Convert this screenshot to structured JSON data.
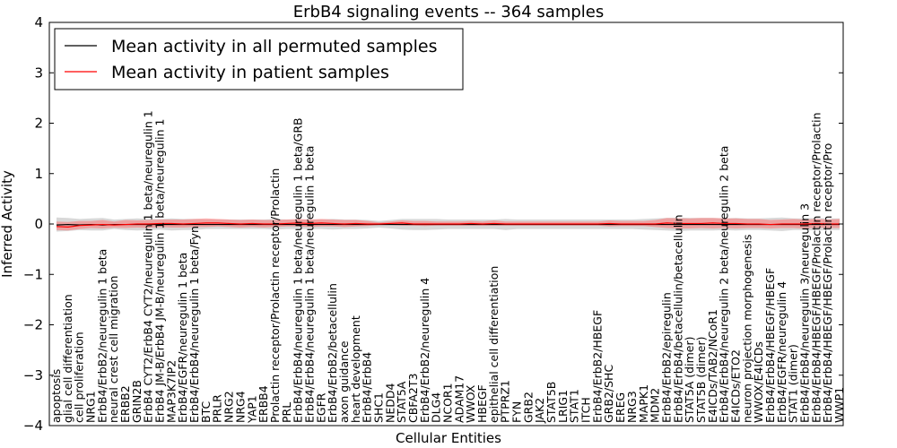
{
  "chart_data": {
    "type": "line",
    "title": "ErbB4 signaling events -- 364 samples",
    "xlabel": "Cellular Entities",
    "ylabel": "Inferred Activity",
    "ylim": [
      -4,
      4
    ],
    "yticks": [
      -4,
      -3,
      -2,
      -1,
      0,
      1,
      2,
      3,
      4
    ],
    "ytick_labels": [
      "−4",
      "−3",
      "−2",
      "−1",
      "0",
      "1",
      "2",
      "3",
      "4"
    ],
    "grid": false,
    "legend_position": "top-left",
    "categories": [
      "apoptosis",
      "glial cell differentiation",
      "cell proliferation",
      "NRG1",
      "ErbB4/ErbB2/neuregulin 1 beta",
      "neural crest cell migration",
      "ERBB2",
      "GRIN2B",
      "ErbB4 CYT2/ErbB4 CYT2/neuregulin 1 beta/neuregulin 1",
      "ErbB4 JM-B/ErbB4 JM-B/neuregulin 1 beta/neuregulin 1",
      "MAP3K7IP2",
      "ErbB4/EGFR/neuregulin 1 beta",
      "ErbB4/ErbB4/neuregulin 1 beta/Fyn",
      "BTC",
      "PRLR",
      "NRG2",
      "NRG4",
      "YAP1",
      "ERBB4",
      "Prolactin receptor/Prolactin receptor/Prolactin",
      "PRL",
      "ErbB4/ErbB4/neuregulin 1 beta/neuregulin 1 beta/GRB",
      "ErbB4/ErbB4/neuregulin 1 beta/neuregulin 1 beta",
      "EGFR",
      "ErbB4/ErbB2/betacellulin",
      "axon guidance",
      "heart development",
      "ErbB4/ErbB4",
      "SHC1",
      "NEDD4",
      "STAT5A",
      "CBFA2T3",
      "ErbB4/ErbB2/neuregulin 4",
      "DLG4",
      "NCOR1",
      "ADAM17",
      "WWOX",
      "HBEGF",
      "epithelial cell differentiation",
      "PTPRZ1",
      "FYN",
      "GRB2",
      "JAK2",
      "STAT5B",
      "LRIG1",
      "STAT1",
      "ITCH",
      "ErbB4/ErbB2/HBEGF",
      "GRB2/SHC",
      "EREG",
      "NRG3",
      "MAPK1",
      "MDM2",
      "ErbB4/ErbB2/epiregulin",
      "ErbB4/ErbB4/betacellulin/betacellulin",
      "STAT5A (dimer)",
      "STAT5B (dimer)",
      "E4ICDs/TAB2/NCoR1",
      "ErbB4/ErbB4/neuregulin 2 beta/neuregulin 2 beta",
      "E4ICDs/ETO2",
      "neuron projection morphogenesis",
      "WWOX/E4ICDs",
      "ErbB4/ErbB4/HBEGF/HBEGF",
      "ErbB4/EGFR/neuregulin 4",
      "STAT1 (dimer)",
      "ErbB4/ErbB4/neuregulin 3/neuregulin 3",
      "ErbB4/ErbB4/HBEGF/HBEGF/Prolactin receptor/Prolactin",
      "ErbB4/ErbB4/HBEGF/HBEGF/Prolactin receptor/Pro",
      "WWP1"
    ],
    "series": [
      {
        "name": "Mean activity in all permuted samples",
        "color": "#000000",
        "values": [
          -0.02,
          -0.01,
          -0.02,
          -0.01,
          -0.02,
          -0.01,
          -0.01,
          -0.01,
          -0.01,
          -0.01,
          -0.01,
          -0.01,
          -0.01,
          -0.01,
          -0.01,
          -0.01,
          -0.01,
          -0.01,
          -0.01,
          -0.01,
          -0.01,
          -0.01,
          -0.01,
          -0.01,
          -0.01,
          -0.01,
          -0.01,
          -0.01,
          -0.01,
          -0.01,
          -0.01,
          -0.01,
          -0.01,
          -0.01,
          -0.01,
          -0.01,
          -0.01,
          -0.01,
          -0.01,
          -0.01,
          -0.01,
          -0.01,
          -0.01,
          -0.01,
          -0.01,
          -0.01,
          -0.01,
          -0.01,
          -0.01,
          -0.01,
          -0.01,
          -0.01,
          -0.01,
          -0.01,
          -0.01,
          -0.01,
          -0.01,
          -0.01,
          -0.01,
          -0.01,
          -0.01,
          -0.01,
          -0.01,
          -0.01,
          -0.01,
          -0.01,
          -0.01,
          -0.01,
          -0.01
        ],
        "band_lower": [
          -0.15,
          -0.14,
          -0.12,
          -0.13,
          -0.13,
          -0.1,
          -0.12,
          -0.13,
          -0.12,
          -0.11,
          -0.13,
          -0.12,
          -0.12,
          -0.1,
          -0.1,
          -0.1,
          -0.1,
          -0.1,
          -0.1,
          -0.11,
          -0.1,
          -0.1,
          -0.1,
          -0.1,
          -0.11,
          -0.1,
          -0.1,
          -0.09,
          -0.07,
          -0.09,
          -0.11,
          -0.12,
          -0.12,
          -0.11,
          -0.1,
          -0.1,
          -0.1,
          -0.1,
          -0.1,
          -0.12,
          -0.1,
          -0.1,
          -0.1,
          -0.1,
          -0.1,
          -0.1,
          -0.1,
          -0.1,
          -0.1,
          -0.1,
          -0.1,
          -0.11,
          -0.12,
          -0.13,
          -0.14,
          -0.13,
          -0.13,
          -0.13,
          -0.12,
          -0.13,
          -0.12,
          -0.12,
          -0.13,
          -0.14,
          -0.12,
          -0.12,
          -0.13,
          -0.12,
          -0.12
        ],
        "band_upper": [
          0.13,
          0.12,
          0.1,
          0.11,
          0.12,
          0.09,
          0.1,
          0.11,
          0.1,
          0.1,
          0.11,
          0.1,
          0.1,
          0.09,
          0.09,
          0.09,
          0.09,
          0.09,
          0.09,
          0.1,
          0.09,
          0.09,
          0.09,
          0.09,
          0.1,
          0.09,
          0.09,
          0.08,
          0.06,
          0.08,
          0.1,
          0.1,
          0.1,
          0.1,
          0.09,
          0.09,
          0.09,
          0.09,
          0.09,
          0.1,
          0.09,
          0.09,
          0.09,
          0.09,
          0.09,
          0.09,
          0.09,
          0.09,
          0.09,
          0.09,
          0.09,
          0.1,
          0.11,
          0.12,
          0.13,
          0.12,
          0.12,
          0.12,
          0.11,
          0.12,
          0.11,
          0.11,
          0.12,
          0.13,
          0.11,
          0.11,
          0.12,
          0.11,
          0.11
        ]
      },
      {
        "name": "Mean activity in patient samples",
        "color": "#ff0000",
        "values": [
          -0.05,
          -0.06,
          -0.03,
          -0.02,
          -0.01,
          -0.02,
          -0.01,
          0.0,
          0.0,
          0.01,
          0.01,
          0.0,
          0.01,
          0.02,
          0.02,
          0.01,
          0.0,
          0.01,
          0.0,
          0.0,
          0.01,
          0.02,
          0.01,
          0.02,
          0.01,
          0.0,
          0.01,
          0.0,
          0.0,
          0.01,
          0.02,
          0.0,
          0.0,
          0.0,
          0.0,
          0.0,
          0.01,
          0.0,
          0.01,
          0.0,
          0.0,
          0.0,
          0.0,
          0.0,
          0.0,
          0.0,
          0.0,
          0.0,
          0.01,
          0.0,
          0.0,
          0.0,
          0.0,
          0.02,
          0.01,
          0.01,
          0.01,
          0.02,
          0.01,
          0.01,
          0.0,
          0.0,
          -0.01,
          0.0,
          0.0,
          0.0,
          0.01,
          0.0,
          0.0
        ],
        "band_lower": [
          -0.12,
          -0.13,
          -0.1,
          -0.08,
          -0.09,
          -0.07,
          -0.08,
          -0.07,
          -0.08,
          -0.06,
          -0.07,
          -0.07,
          -0.06,
          -0.06,
          -0.05,
          -0.06,
          -0.07,
          -0.06,
          -0.07,
          -0.06,
          -0.05,
          -0.05,
          -0.06,
          -0.05,
          -0.05,
          -0.06,
          -0.05,
          -0.04,
          -0.02,
          -0.02,
          -0.03,
          -0.03,
          -0.04,
          -0.03,
          -0.03,
          -0.03,
          -0.03,
          -0.03,
          -0.03,
          -0.03,
          -0.03,
          -0.03,
          -0.03,
          -0.03,
          -0.03,
          -0.03,
          -0.03,
          -0.03,
          -0.05,
          -0.04,
          -0.04,
          -0.04,
          -0.06,
          -0.08,
          -0.09,
          -0.09,
          -0.08,
          -0.09,
          -0.08,
          -0.09,
          -0.08,
          -0.08,
          -0.09,
          -0.08,
          -0.08,
          -0.09,
          -0.07,
          -0.08,
          -0.08
        ],
        "band_upper": [
          0.05,
          0.04,
          0.06,
          0.06,
          0.08,
          0.05,
          0.08,
          0.07,
          0.08,
          0.09,
          0.09,
          0.09,
          0.1,
          0.11,
          0.1,
          0.09,
          0.08,
          0.09,
          0.08,
          0.08,
          0.09,
          0.1,
          0.09,
          0.1,
          0.09,
          0.08,
          0.08,
          0.06,
          0.03,
          0.05,
          0.07,
          0.06,
          0.06,
          0.05,
          0.05,
          0.05,
          0.06,
          0.05,
          0.07,
          0.05,
          0.05,
          0.05,
          0.05,
          0.05,
          0.05,
          0.05,
          0.05,
          0.05,
          0.07,
          0.06,
          0.06,
          0.06,
          0.08,
          0.12,
          0.11,
          0.11,
          0.12,
          0.12,
          0.11,
          0.11,
          0.1,
          0.1,
          0.08,
          0.09,
          0.1,
          0.09,
          0.1,
          0.09,
          0.1
        ]
      }
    ]
  },
  "colors": {
    "permuted_band": "#c8c8c8",
    "patient_band": "#ff6a6a",
    "axes": "#000000",
    "background": "#ffffff"
  }
}
